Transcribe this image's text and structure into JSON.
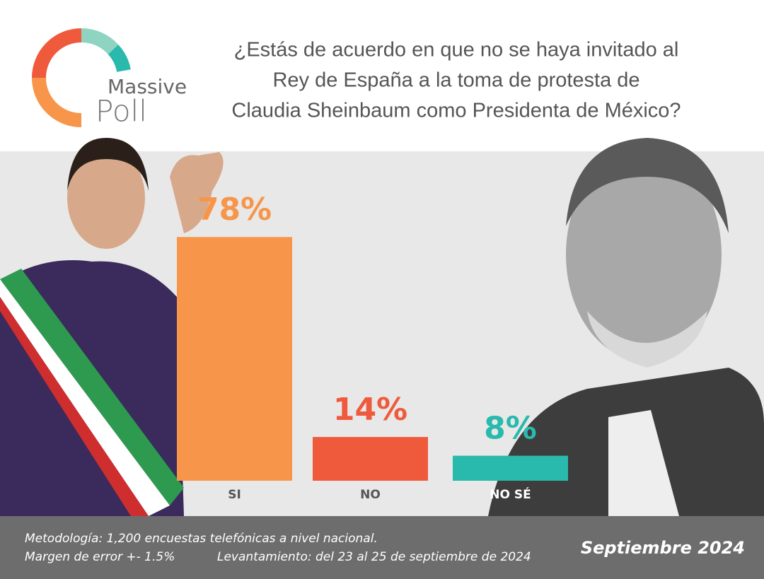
{
  "logo": {
    "line1": "Massive",
    "line2": "Poll"
  },
  "chart_data": {
    "type": "bar",
    "title": [
      "¿Estás de acuerdo en que no se haya invitado al",
      "Rey de España a la toma de protesta de",
      "Claudia Sheinbaum como Presidenta de México?"
    ],
    "categories": [
      "SI",
      "NO",
      "NO SÉ"
    ],
    "values": [
      78,
      14,
      8
    ],
    "value_labels": [
      "78%",
      "14%",
      "8%"
    ],
    "colors": [
      "#f7964a",
      "#f05a3c",
      "#29b9ad"
    ]
  },
  "footer": {
    "methodology": "Metodología: 1,200 encuestas telefónicas a nivel nacional.",
    "margin": "Margen de error +- 1.5%",
    "fieldwork": "Levantamiento: del 23 al 25 de septiembre de 2024",
    "date": "Septiembre 2024"
  }
}
